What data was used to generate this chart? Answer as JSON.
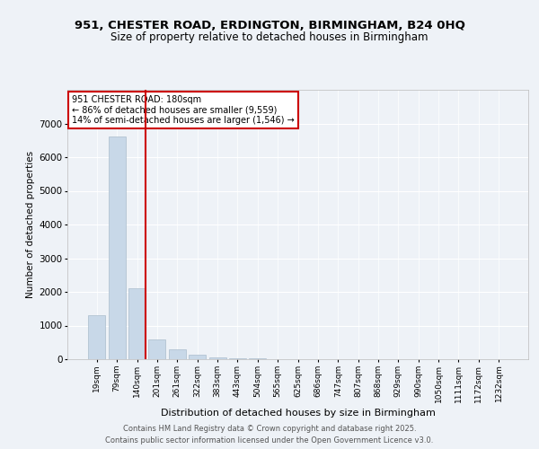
{
  "title1": "951, CHESTER ROAD, ERDINGTON, BIRMINGHAM, B24 0HQ",
  "title2": "Size of property relative to detached houses in Birmingham",
  "xlabel": "Distribution of detached houses by size in Birmingham",
  "ylabel": "Number of detached properties",
  "categories": [
    "19sqm",
    "79sqm",
    "140sqm",
    "201sqm",
    "261sqm",
    "322sqm",
    "383sqm",
    "443sqm",
    "504sqm",
    "565sqm",
    "625sqm",
    "686sqm",
    "747sqm",
    "807sqm",
    "868sqm",
    "929sqm",
    "990sqm",
    "1050sqm",
    "1111sqm",
    "1172sqm",
    "1232sqm"
  ],
  "values": [
    1300,
    6620,
    2100,
    600,
    300,
    130,
    60,
    35,
    18,
    10,
    7,
    4,
    3,
    2,
    1,
    1,
    1,
    0,
    0,
    0,
    0
  ],
  "bar_color": "#c8d8e8",
  "bar_edge_color": "#aabccc",
  "highlight_bar_index": 2,
  "highlight_color": "#cc0000",
  "annotation_line1": "951 CHESTER ROAD: 180sqm",
  "annotation_line2": "← 86% of detached houses are smaller (9,559)",
  "annotation_line3": "14% of semi-detached houses are larger (1,546) →",
  "annotation_color": "#cc0000",
  "ylim_max": 8000,
  "yticks": [
    0,
    1000,
    2000,
    3000,
    4000,
    5000,
    6000,
    7000
  ],
  "background_color": "#eef2f7",
  "grid_color": "#ffffff",
  "footer1": "Contains HM Land Registry data © Crown copyright and database right 2025.",
  "footer2": "Contains public sector information licensed under the Open Government Licence v3.0."
}
